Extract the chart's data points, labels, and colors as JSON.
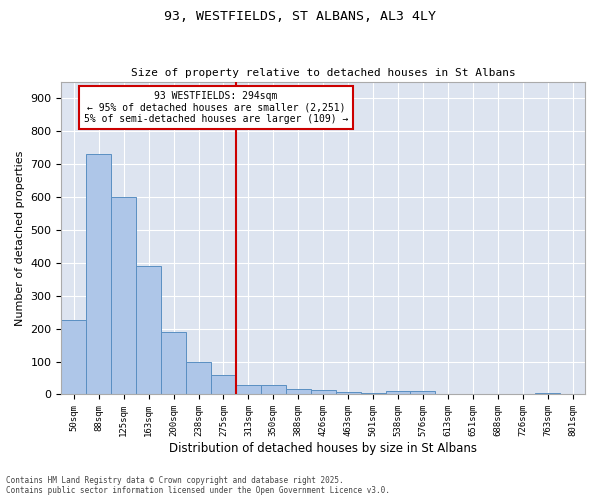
{
  "title1": "93, WESTFIELDS, ST ALBANS, AL3 4LY",
  "title2": "Size of property relative to detached houses in St Albans",
  "xlabel": "Distribution of detached houses by size in St Albans",
  "ylabel": "Number of detached properties",
  "categories": [
    "50sqm",
    "88sqm",
    "125sqm",
    "163sqm",
    "200sqm",
    "238sqm",
    "275sqm",
    "313sqm",
    "350sqm",
    "388sqm",
    "426sqm",
    "463sqm",
    "501sqm",
    "538sqm",
    "576sqm",
    "613sqm",
    "651sqm",
    "688sqm",
    "726sqm",
    "763sqm",
    "801sqm"
  ],
  "values": [
    225,
    730,
    600,
    390,
    190,
    100,
    60,
    30,
    28,
    17,
    15,
    8,
    5,
    10,
    10,
    0,
    0,
    0,
    0,
    5,
    0
  ],
  "bar_color": "#aec6e8",
  "bar_edge_color": "#5a8fc2",
  "vline_x": 6.5,
  "vline_color": "#cc0000",
  "annotation_title": "93 WESTFIELDS: 294sqm",
  "annotation_line1": "← 95% of detached houses are smaller (2,251)",
  "annotation_line2": "5% of semi-detached houses are larger (109) →",
  "annotation_box_color": "#ffffff",
  "annotation_box_edge": "#cc0000",
  "ylim": [
    0,
    950
  ],
  "yticks": [
    0,
    100,
    200,
    300,
    400,
    500,
    600,
    700,
    800,
    900
  ],
  "bg_color": "#dde4f0",
  "footer1": "Contains HM Land Registry data © Crown copyright and database right 2025.",
  "footer2": "Contains public sector information licensed under the Open Government Licence v3.0."
}
